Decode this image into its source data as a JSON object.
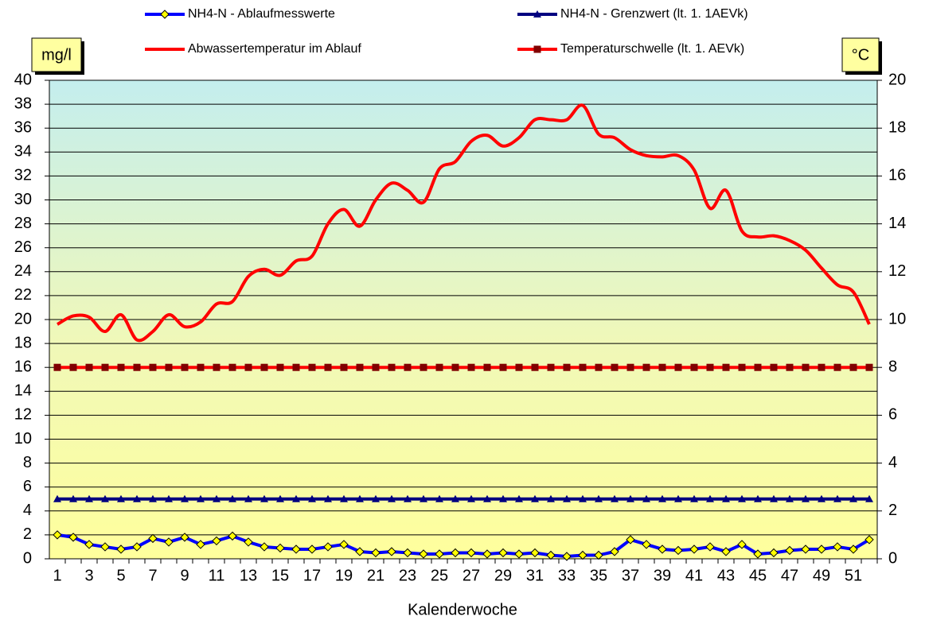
{
  "chart_data": {
    "type": "line",
    "x_label": "Kalenderwoche",
    "y_label": "mg/l",
    "y2_label": "°C",
    "categories": [
      1,
      null,
      3,
      null,
      5,
      null,
      7,
      null,
      9,
      null,
      11,
      null,
      13,
      null,
      15,
      null,
      17,
      null,
      19,
      null,
      21,
      null,
      23,
      null,
      25,
      null,
      27,
      null,
      29,
      null,
      31,
      null,
      33,
      null,
      35,
      null,
      37,
      null,
      39,
      null,
      41,
      null,
      43,
      null,
      45,
      null,
      47,
      null,
      49,
      null,
      51,
      null
    ],
    "ylim": [
      0,
      40
    ],
    "yticks": [
      0,
      2,
      4,
      6,
      8,
      10,
      12,
      14,
      16,
      18,
      20,
      22,
      24,
      26,
      28,
      30,
      32,
      34,
      36,
      38,
      40
    ],
    "y2lim": [
      0,
      20
    ],
    "y2ticks": [
      0,
      2,
      4,
      6,
      8,
      10,
      12,
      14,
      16,
      18,
      20
    ],
    "grid": true,
    "series": [
      {
        "name": "NH4-N - Ablaufmesswerte",
        "color": "#0000ff",
        "marker": "diamond",
        "marker_color": "#ffff00",
        "values": [
          2.0,
          1.8,
          1.2,
          1.0,
          0.8,
          1.0,
          1.7,
          1.4,
          1.8,
          1.2,
          1.5,
          1.9,
          1.4,
          1.0,
          0.9,
          0.8,
          0.8,
          1.0,
          1.2,
          0.6,
          0.5,
          0.6,
          0.5,
          0.4,
          0.4,
          0.5,
          0.5,
          0.4,
          0.5,
          0.4,
          0.5,
          0.3,
          0.2,
          0.3,
          0.3,
          0.6,
          1.6,
          1.2,
          0.8,
          0.7,
          0.8,
          1.0,
          0.6,
          1.2,
          0.4,
          0.5,
          0.7,
          0.8,
          0.8,
          1.0,
          0.8,
          1.6
        ]
      },
      {
        "name": "NH4-N - Grenzwert (lt. 1. 1AEVk)",
        "color": "#000080",
        "marker": "triangle",
        "marker_color": "#000080",
        "values": [
          5,
          5,
          5,
          5,
          5,
          5,
          5,
          5,
          5,
          5,
          5,
          5,
          5,
          5,
          5,
          5,
          5,
          5,
          5,
          5,
          5,
          5,
          5,
          5,
          5,
          5,
          5,
          5,
          5,
          5,
          5,
          5,
          5,
          5,
          5,
          5,
          5,
          5,
          5,
          5,
          5,
          5,
          5,
          5,
          5,
          5,
          5,
          5,
          5,
          5,
          5,
          5
        ]
      },
      {
        "name": "Abwassertemperatur im Ablauf",
        "color": "#ff0000",
        "axis": "y2",
        "smooth": true,
        "values": [
          9.8,
          10.15,
          10.1,
          9.5,
          10.2,
          9.15,
          9.5,
          10.2,
          9.7,
          9.9,
          10.65,
          10.75,
          11.8,
          12.1,
          11.85,
          12.45,
          12.65,
          14.0,
          14.6,
          13.9,
          15.0,
          15.7,
          15.4,
          14.9,
          16.3,
          16.6,
          17.45,
          17.7,
          17.25,
          17.6,
          18.35,
          18.35,
          18.35,
          18.95,
          17.75,
          17.6,
          17.1,
          16.85,
          16.8,
          16.85,
          16.25,
          14.65,
          15.4,
          13.7,
          13.45,
          13.5,
          13.3,
          12.9,
          12.15,
          11.45,
          11.15,
          9.8
        ]
      },
      {
        "name": "Temperaturschwelle (lt. 1. AEVk)",
        "color": "#ff0000",
        "axis": "y2",
        "marker": "square",
        "marker_color": "#800000",
        "values": [
          8,
          8,
          8,
          8,
          8,
          8,
          8,
          8,
          8,
          8,
          8,
          8,
          8,
          8,
          8,
          8,
          8,
          8,
          8,
          8,
          8,
          8,
          8,
          8,
          8,
          8,
          8,
          8,
          8,
          8,
          8,
          8,
          8,
          8,
          8,
          8,
          8,
          8,
          8,
          8,
          8,
          8,
          8,
          8,
          8,
          8,
          8,
          8,
          8,
          8,
          8,
          8
        ]
      }
    ]
  }
}
